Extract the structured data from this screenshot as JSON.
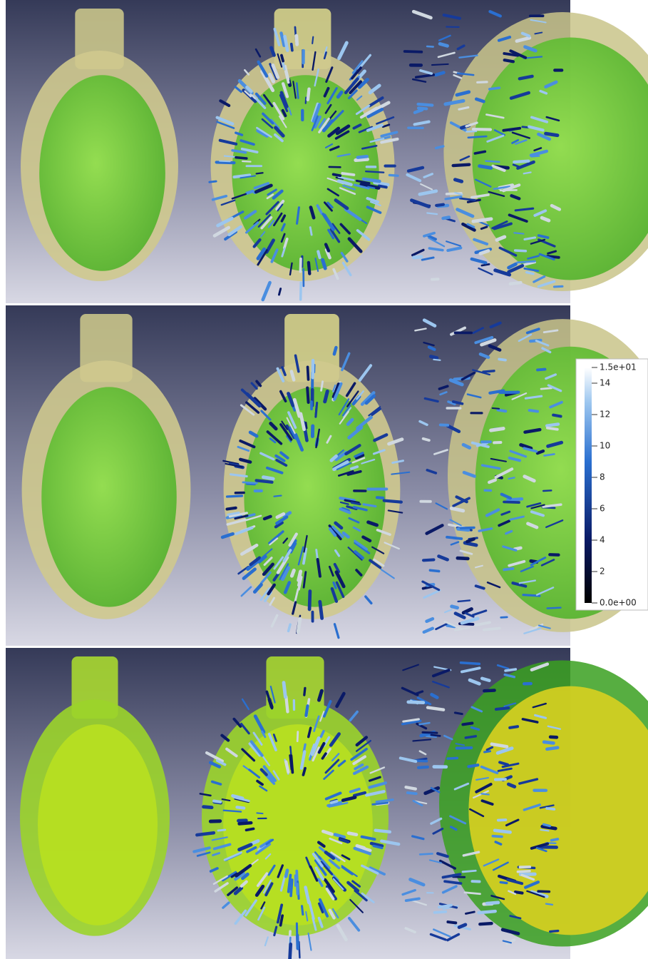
{
  "colorbar": {
    "lim": [
      0,
      15
    ],
    "ticks": [
      {
        "value": 15,
        "label": "1.5e+01"
      },
      14,
      12,
      10,
      8,
      6,
      4,
      2,
      {
        "value": 0,
        "label": "0.0e+00"
      }
    ]
  }
}
